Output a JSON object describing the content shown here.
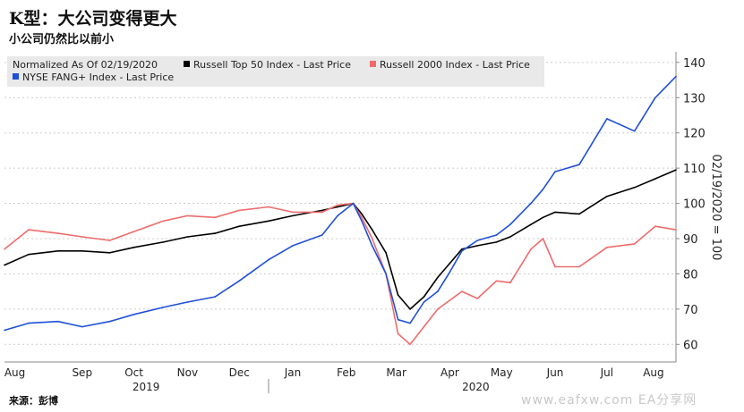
{
  "title": "K型：大公司变得更大",
  "subtitle": "小公司仍然比以前小",
  "source": "来源：彭博",
  "watermark": "www.eafxw.com EA分享网",
  "colors": {
    "russell_top50": "#000000",
    "russell_2000": "#ee6b6b",
    "nyse_fang": "#1f4fd8",
    "legend_bg": "#e9e9e9",
    "grid": "#cccccc"
  },
  "chart_data": {
    "type": "line",
    "title": "K型：大公司变得更大",
    "subtitle": "小公司仍然比以前小",
    "legend_title": "Normalized As Of 02/19/2020",
    "legend_position": "top-left",
    "ylabel": "02/19/2020 = 100",
    "ylim": [
      55,
      143
    ],
    "yticks": [
      60,
      70,
      80,
      90,
      100,
      110,
      120,
      130,
      140
    ],
    "ytick_labels": [
      "60",
      "70",
      "80",
      "90",
      "100",
      "110",
      "120",
      "130",
      "140"
    ],
    "x_start": "2019-08-01",
    "x_end": "2020-08-24",
    "month_labels": [
      "Aug",
      "Sep",
      "Oct",
      "Nov",
      "Dec",
      "Jan",
      "Feb",
      "Mar",
      "Apr",
      "May",
      "Jun",
      "Jul",
      "Aug"
    ],
    "month_label_dates": [
      "2019-08-07",
      "2019-09-15",
      "2019-10-15",
      "2019-11-15",
      "2019-12-15",
      "2020-01-15",
      "2020-02-15",
      "2020-03-15",
      "2020-04-15",
      "2020-05-15",
      "2020-06-15",
      "2020-07-15",
      "2020-08-11"
    ],
    "year_labels": [
      "2019",
      "2020"
    ],
    "year_label_dates": [
      "2019-10-22",
      "2020-04-30"
    ],
    "year_separator_date": "2020-01-01",
    "series": [
      {
        "name": "Russell Top 50 Index - Last Price",
        "color": "#000000",
        "x": [
          "2019-08-01",
          "2019-08-15",
          "2019-09-01",
          "2019-09-15",
          "2019-10-01",
          "2019-10-15",
          "2019-11-01",
          "2019-11-15",
          "2019-12-01",
          "2019-12-15",
          "2020-01-01",
          "2020-01-15",
          "2020-02-01",
          "2020-02-10",
          "2020-02-19",
          "2020-02-24",
          "2020-03-01",
          "2020-03-09",
          "2020-03-16",
          "2020-03-23",
          "2020-03-31",
          "2020-04-08",
          "2020-04-15",
          "2020-04-22",
          "2020-05-01",
          "2020-05-12",
          "2020-05-20",
          "2020-06-01",
          "2020-06-08",
          "2020-06-15",
          "2020-06-29",
          "2020-07-15",
          "2020-07-31",
          "2020-08-12",
          "2020-08-24"
        ],
        "values": [
          82.5,
          85.5,
          86.5,
          86.5,
          86.0,
          87.5,
          89.0,
          90.5,
          91.5,
          93.5,
          95.0,
          96.5,
          98.0,
          99.0,
          100.0,
          97.0,
          92.5,
          86.0,
          74.0,
          70.0,
          73.5,
          79.0,
          83.0,
          87.0,
          88.0,
          89.0,
          90.5,
          94.0,
          96.0,
          97.5,
          97.0,
          102.0,
          104.5,
          107.0,
          109.5
        ]
      },
      {
        "name": "Russell 2000 Index - Last Price",
        "color": "#ee6b6b",
        "x": [
          "2019-08-01",
          "2019-08-15",
          "2019-09-01",
          "2019-09-15",
          "2019-10-01",
          "2019-10-15",
          "2019-11-01",
          "2019-11-15",
          "2019-12-01",
          "2019-12-15",
          "2020-01-01",
          "2020-01-15",
          "2020-02-01",
          "2020-02-10",
          "2020-02-19",
          "2020-02-24",
          "2020-03-01",
          "2020-03-09",
          "2020-03-16",
          "2020-03-23",
          "2020-03-31",
          "2020-04-08",
          "2020-04-15",
          "2020-04-22",
          "2020-05-01",
          "2020-05-12",
          "2020-05-20",
          "2020-06-01",
          "2020-06-08",
          "2020-06-15",
          "2020-06-29",
          "2020-07-15",
          "2020-07-31",
          "2020-08-12",
          "2020-08-24"
        ],
        "values": [
          87.0,
          92.5,
          91.5,
          90.5,
          89.5,
          92.0,
          95.0,
          96.5,
          96.0,
          98.0,
          99.0,
          97.5,
          97.5,
          99.5,
          100.0,
          96.0,
          90.0,
          80.0,
          63.0,
          60.0,
          65.0,
          70.0,
          72.5,
          75.0,
          73.0,
          78.0,
          77.5,
          87.0,
          90.0,
          82.0,
          82.0,
          87.5,
          88.5,
          93.5,
          92.5
        ]
      },
      {
        "name": "NYSE FANG+ Index - Last Price",
        "color": "#1f4fd8",
        "x": [
          "2019-08-01",
          "2019-08-15",
          "2019-09-01",
          "2019-09-15",
          "2019-10-01",
          "2019-10-15",
          "2019-11-01",
          "2019-11-15",
          "2019-12-01",
          "2019-12-15",
          "2020-01-01",
          "2020-01-15",
          "2020-02-01",
          "2020-02-10",
          "2020-02-19",
          "2020-02-24",
          "2020-03-01",
          "2020-03-09",
          "2020-03-16",
          "2020-03-23",
          "2020-03-31",
          "2020-04-08",
          "2020-04-15",
          "2020-04-22",
          "2020-05-01",
          "2020-05-12",
          "2020-05-20",
          "2020-06-01",
          "2020-06-08",
          "2020-06-15",
          "2020-06-29",
          "2020-07-15",
          "2020-07-31",
          "2020-08-12",
          "2020-08-24"
        ],
        "values": [
          64.0,
          66.0,
          66.5,
          65.0,
          66.5,
          68.5,
          70.5,
          72.0,
          73.5,
          78.0,
          84.0,
          88.0,
          91.0,
          96.5,
          100.0,
          95.0,
          88.0,
          80.0,
          67.0,
          66.0,
          72.0,
          75.0,
          80.5,
          86.5,
          89.5,
          91.0,
          94.0,
          100.0,
          104.0,
          109.0,
          111.0,
          124.0,
          120.5,
          130.0,
          136.0
        ]
      }
    ]
  }
}
